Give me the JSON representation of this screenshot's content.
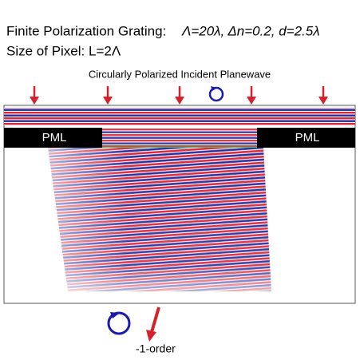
{
  "header": {
    "title": "Finite Polarization Grating:",
    "parameters": "Λ=20λ, Δn=0.2, d=2.5λ",
    "pixel": "Size of Pixel: L=2Λ"
  },
  "labels": {
    "incident": "Circularly Polarized Incident Planewave",
    "pml_left": "PML",
    "pml_right": "PML",
    "order": "-1-order"
  }
}
